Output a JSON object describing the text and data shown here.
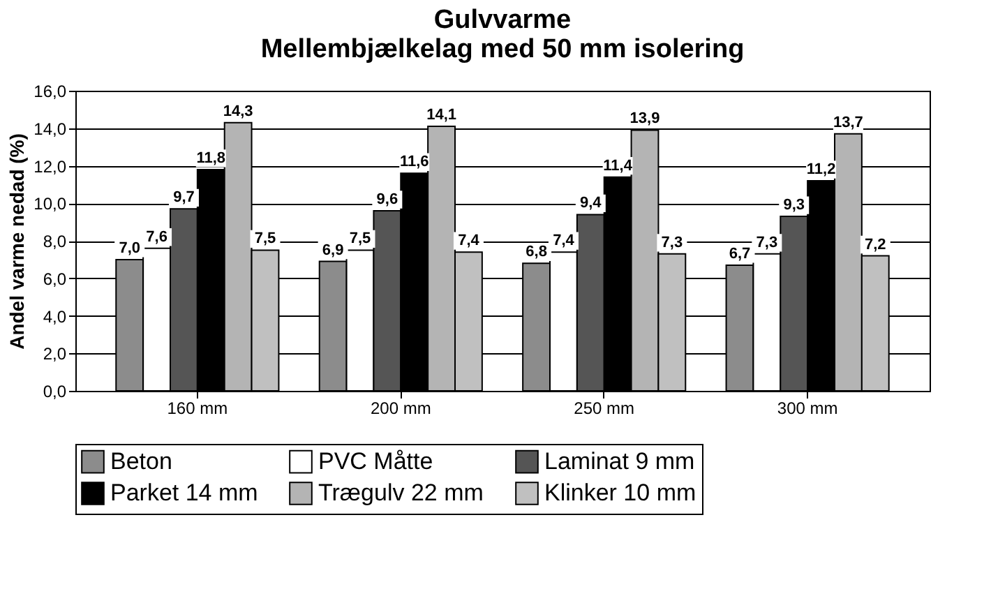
{
  "chart_data": {
    "type": "bar",
    "title": [
      "Gulvvarme",
      "Mellembjælkelag med 50 mm isolering"
    ],
    "ylabel": "Andel varme nedad (%)",
    "categories": [
      "160 mm",
      "200 mm",
      "250 mm",
      "300 mm"
    ],
    "series": [
      {
        "name": "Beton",
        "color": "#8c8c8c",
        "values": [
          7.0,
          6.9,
          6.8,
          6.7
        ],
        "value_labels": [
          "7,0",
          "6,9",
          "6,8",
          "6,7"
        ]
      },
      {
        "name": "PVC Måtte",
        "color": "#ffffff",
        "values": [
          7.6,
          7.5,
          7.4,
          7.3
        ],
        "value_labels": [
          "7,6",
          "7,5",
          "7,4",
          "7,3"
        ]
      },
      {
        "name": "Laminat 9 mm",
        "color": "#555555",
        "values": [
          9.7,
          9.6,
          9.4,
          9.3
        ],
        "value_labels": [
          "9,7",
          "9,6",
          "9,4",
          "9,3"
        ]
      },
      {
        "name": "Parket 14 mm",
        "color": "#000000",
        "values": [
          11.8,
          11.6,
          11.4,
          11.2
        ],
        "value_labels": [
          "11,8",
          "11,6",
          "11,4",
          "11,2"
        ]
      },
      {
        "name": "Trægulv 22 mm",
        "color": "#b4b4b4",
        "values": [
          14.3,
          14.1,
          13.9,
          13.7
        ],
        "value_labels": [
          "14,3",
          "14,1",
          "13,9",
          "13,7"
        ]
      },
      {
        "name": "Klinker 10 mm",
        "color": "#c0c0c0",
        "values": [
          7.5,
          7.4,
          7.3,
          7.2
        ],
        "value_labels": [
          "7,5",
          "7,4",
          "7,3",
          "7,2"
        ]
      }
    ],
    "ylim": [
      0,
      16
    ],
    "yticks": [
      {
        "value": 0,
        "label": "0,0"
      },
      {
        "value": 2,
        "label": "2,0"
      },
      {
        "value": 4,
        "label": "4,0"
      },
      {
        "value": 6,
        "label": "6,0"
      },
      {
        "value": 8,
        "label": "8,0"
      },
      {
        "value": 10,
        "label": "10,0"
      },
      {
        "value": 12,
        "label": "12,0"
      },
      {
        "value": 14,
        "label": "14,0"
      },
      {
        "value": 16,
        "label": "16,0"
      }
    ],
    "grid": "y",
    "legend": "bottom"
  }
}
